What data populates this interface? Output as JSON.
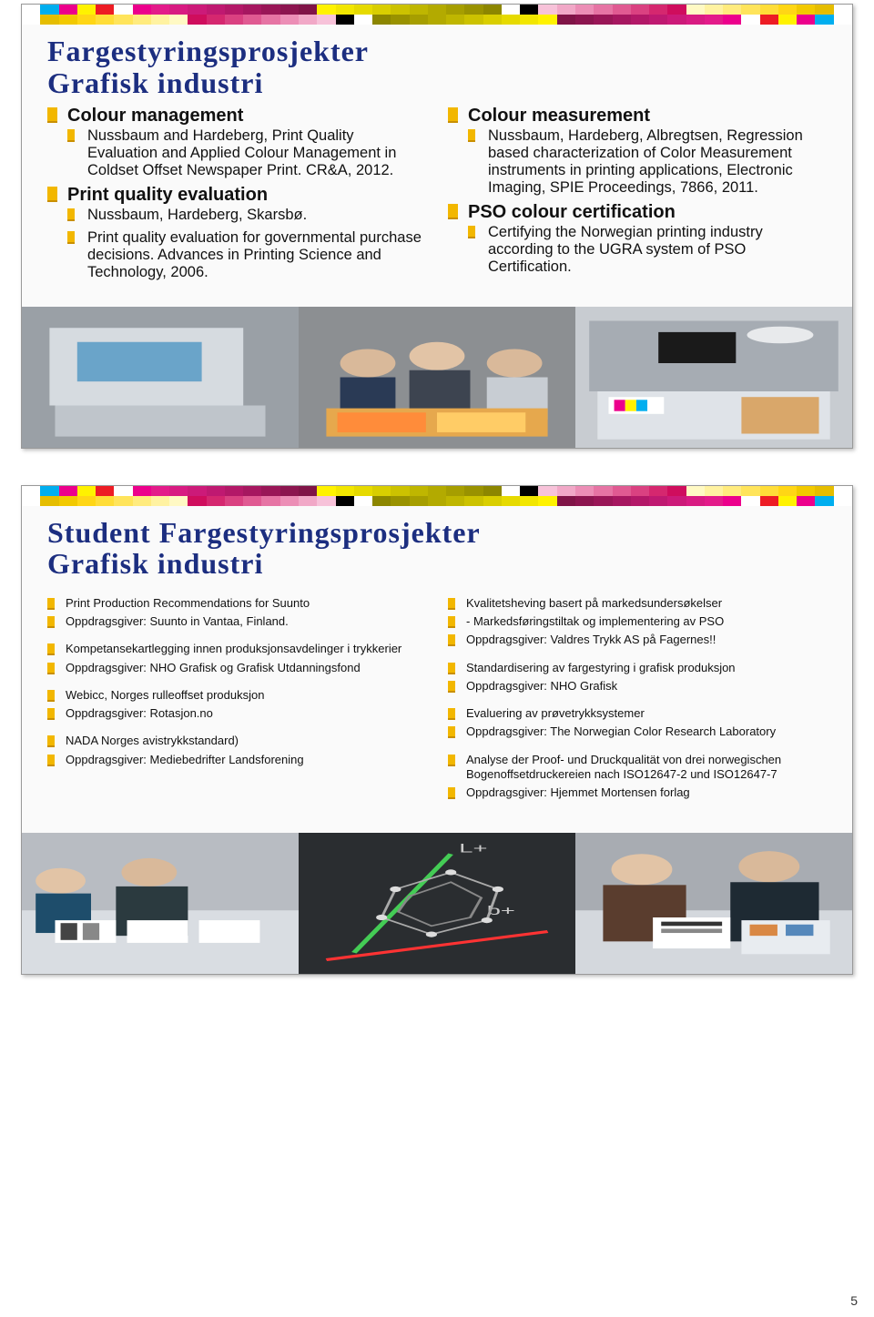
{
  "page_number": "5",
  "colorbar_colors": [
    "#ffffff",
    "#00aeef",
    "#ec008c",
    "#fff200",
    "#ed1c24",
    "#ffffff",
    "#ec008c",
    "#e31b8a",
    "#d81b82",
    "#cc1a79",
    "#bf1971",
    "#b31868",
    "#a61760",
    "#991657",
    "#8c154f",
    "#801447",
    "#fff200",
    "#f2e600",
    "#e6da00",
    "#d9ce00",
    "#ccc200",
    "#bfb600",
    "#b3aa00",
    "#a69e00",
    "#999200",
    "#8c8600",
    "#ffffff",
    "#000000",
    "#f7c2d9",
    "#f1a8c7",
    "#ec8eb6",
    "#e674a4",
    "#e05a92",
    "#da4181",
    "#d5276f",
    "#cf0d5d",
    "#fff9c4",
    "#fff2a1",
    "#ffeb7e",
    "#ffe45b",
    "#ffdd38",
    "#ffd615",
    "#f2c900",
    "#e5bd00",
    "#ffffff"
  ],
  "slide1": {
    "title_line1": "Fargestyringsprosjekter",
    "title_line2": "Grafisk industri",
    "left": [
      {
        "head": "Colour management",
        "items": [
          "Nussbaum and Hardeberg, Print Quality Evaluation and Applied Colour Management in Coldset Offset Newspaper Print. CR&A, 2012."
        ]
      },
      {
        "head": "Print quality evaluation",
        "items": [
          "Nussbaum, Hardeberg, Skarsbø.",
          "Print quality evaluation for governmental purchase decisions. Advances in Printing Science and Technology, 2006."
        ]
      }
    ],
    "right": [
      {
        "head": "Colour measurement",
        "items": [
          "Nussbaum, Hardeberg, Albregtsen, Regression based characterization of Color Measurement instruments in printing applications, Electronic Imaging, SPIE Proceedings, 7866, 2011."
        ]
      },
      {
        "head": "PSO colour certification",
        "items": [
          "Certifying the Norwegian printing industry according to the UGRA system of PSO Certification."
        ]
      }
    ]
  },
  "slide2": {
    "title_line1": "Student Fargestyringsprosjekter",
    "title_line2": "Grafisk industri",
    "left": [
      [
        "Print Production Recommendations for Suunto",
        "Oppdragsgiver: Suunto in Vantaa, Finland."
      ],
      [
        "Kompetansekartlegging innen produksjonsavdelinger i trykkerier",
        "Oppdragsgiver: NHO Grafisk og Grafisk Utdanningsfond"
      ],
      [
        "Webicc, Norges rulleoffset produksjon",
        "Oppdragsgiver: Rotasjon.no"
      ],
      [
        "NADA Norges avistrykkstandard)",
        "Oppdragsgiver: Mediebedrifter Landsforening"
      ]
    ],
    "right": [
      [
        "Kvalitetsheving basert på markedsundersøkelser",
        "- Markedsføringstiltak og implementering av PSO",
        "Oppdragsgiver: Valdres Trykk AS på Fagernes!!"
      ],
      [
        "Standardisering av fargestyring i grafisk produksjon",
        "Oppdragsgiver: NHO Grafisk"
      ],
      [
        "Evaluering av prøvetrykksystemer",
        "Oppdragsgiver: The Norwegian Color Research Laboratory"
      ],
      [
        "Analyse der Proof- und Druckqualität von drei norwegischen Bogenoffsetdruckereien nach ISO12647-2 und ISO12647-7",
        "Oppdragsgiver: Hjemmet Mortensen forlag"
      ]
    ]
  }
}
